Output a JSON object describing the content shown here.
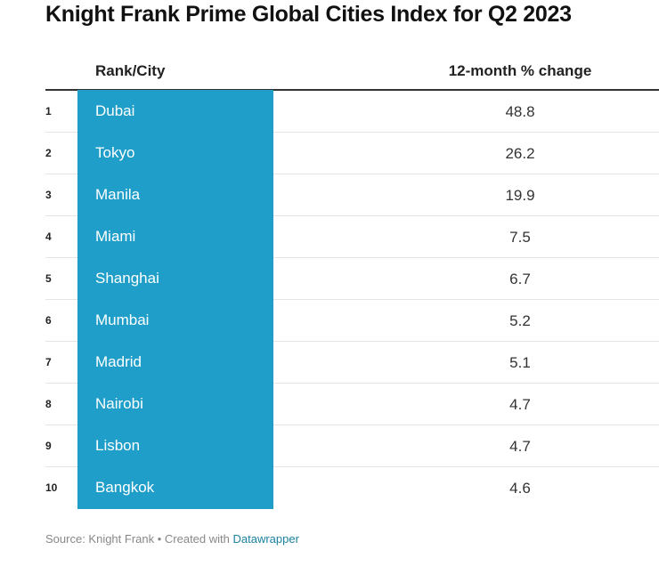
{
  "title": "Knight Frank Prime Global Cities Index for Q2 2023",
  "chart_data": {
    "type": "table",
    "title": "Knight Frank Prime Global Cities Index for Q2 2023",
    "columns": [
      "Rank/City",
      "12-month % change"
    ],
    "rows": [
      {
        "rank": "1",
        "city": "Dubai",
        "change": "48.8"
      },
      {
        "rank": "2",
        "city": "Tokyo",
        "change": "26.2"
      },
      {
        "rank": "3",
        "city": "Manila",
        "change": "19.9"
      },
      {
        "rank": "4",
        "city": "Miami",
        "change": "7.5"
      },
      {
        "rank": "5",
        "city": "Shanghai",
        "change": "6.7"
      },
      {
        "rank": "6",
        "city": "Mumbai",
        "change": "5.2"
      },
      {
        "rank": "7",
        "city": "Madrid",
        "change": "5.1"
      },
      {
        "rank": "8",
        "city": "Nairobi",
        "change": "4.7"
      },
      {
        "rank": "9",
        "city": "Lisbon",
        "change": "4.7"
      },
      {
        "rank": "10",
        "city": "Bangkok",
        "change": "4.6"
      }
    ],
    "highlight_color": "#1f9ec9"
  },
  "footer": {
    "source": "Source: Knight Frank • Created with ",
    "link": "Datawrapper"
  }
}
